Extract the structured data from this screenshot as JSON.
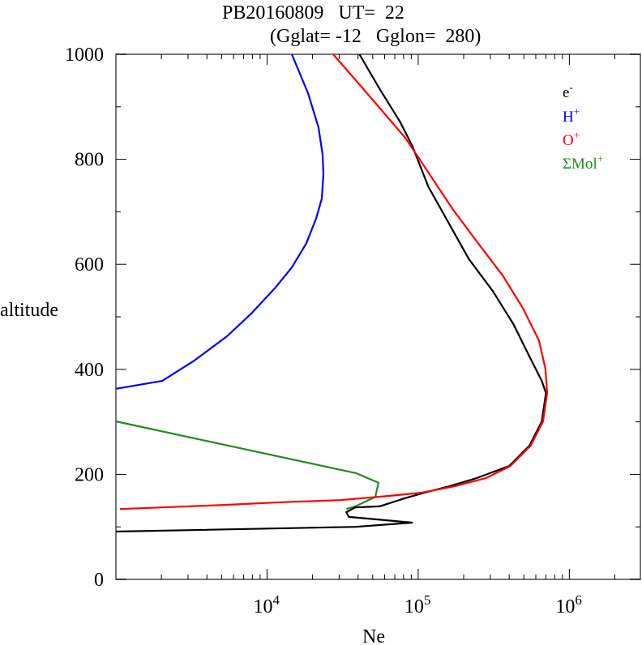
{
  "chart_data": {
    "type": "line",
    "title": "PB20160809   UT=  22",
    "subtitle": "(Gglat= -12   Gglon=  280)",
    "xlabel": "Ne",
    "ylabel": "altitude",
    "xscale": "log",
    "xlim_log10": [
      3.0,
      6.47
    ],
    "ylim": [
      0,
      1000
    ],
    "x_major_ticks_log10": [
      4,
      5,
      6
    ],
    "x_tick_labels": [
      {
        "base": "10",
        "exp": "4"
      },
      {
        "base": "10",
        "exp": "5"
      },
      {
        "base": "10",
        "exp": "6"
      }
    ],
    "y_ticks": [
      0,
      200,
      400,
      600,
      800,
      1000
    ],
    "y_tick_labels": [
      "0",
      "200",
      "400",
      "600",
      "800",
      "1000"
    ],
    "y_minor_ticks": [
      100,
      300,
      500,
      700,
      900
    ],
    "grid": false,
    "legend_position": "top-right",
    "series": [
      {
        "name": "e-",
        "label_base": "e",
        "label_sup": "-",
        "color": "#000000",
        "points_log10_alt": [
          [
            4.611,
            1000
          ],
          [
            4.745,
            934
          ],
          [
            4.879,
            872
          ],
          [
            4.96,
            826
          ],
          [
            5.067,
            748
          ],
          [
            5.201,
            679
          ],
          [
            5.335,
            610
          ],
          [
            5.496,
            548
          ],
          [
            5.63,
            486
          ],
          [
            5.737,
            424
          ],
          [
            5.818,
            378
          ],
          [
            5.845,
            355
          ],
          [
            5.818,
            301
          ],
          [
            5.737,
            255
          ],
          [
            5.603,
            216
          ],
          [
            5.389,
            193
          ],
          [
            5.201,
            177
          ],
          [
            5.04,
            165
          ],
          [
            4.906,
            154
          ],
          [
            4.745,
            139
          ],
          [
            4.584,
            137
          ],
          [
            4.525,
            128
          ],
          [
            4.541,
            119
          ],
          [
            4.96,
            108
          ],
          [
            4.584,
            100
          ],
          [
            3.0,
            91
          ]
        ]
      },
      {
        "name": "H+",
        "label_base": "H",
        "label_sup": "+",
        "color": "#0000ff",
        "points_log10_alt": [
          [
            4.164,
            1000
          ],
          [
            4.271,
            926
          ],
          [
            4.34,
            861
          ],
          [
            4.367,
            810
          ],
          [
            4.373,
            772
          ],
          [
            4.362,
            725
          ],
          [
            4.324,
            687
          ],
          [
            4.26,
            640
          ],
          [
            4.164,
            594
          ],
          [
            4.056,
            556
          ],
          [
            3.895,
            506
          ],
          [
            3.735,
            463
          ],
          [
            3.52,
            417
          ],
          [
            3.306,
            378
          ],
          [
            3.0,
            363
          ]
        ]
      },
      {
        "name": "O+",
        "label_base": "O",
        "label_sup": "+",
        "color": "#ff0000",
        "points_log10_alt": [
          [
            4.437,
            1000
          ],
          [
            4.592,
            949
          ],
          [
            4.753,
            895
          ],
          [
            4.914,
            841
          ],
          [
            5.021,
            795
          ],
          [
            5.129,
            748
          ],
          [
            5.236,
            702
          ],
          [
            5.397,
            640
          ],
          [
            5.558,
            579
          ],
          [
            5.692,
            517
          ],
          [
            5.799,
            455
          ],
          [
            5.842,
            401
          ],
          [
            5.853,
            355
          ],
          [
            5.826,
            301
          ],
          [
            5.745,
            255
          ],
          [
            5.611,
            216
          ],
          [
            5.45,
            193
          ],
          [
            5.236,
            177
          ],
          [
            5.021,
            165
          ],
          [
            4.807,
            159
          ],
          [
            4.485,
            151
          ],
          [
            4.11,
            147
          ],
          [
            3.735,
            142
          ],
          [
            3.306,
            137
          ],
          [
            3.027,
            134
          ]
        ]
      },
      {
        "name": "ΣMol+",
        "label_base": "ΣMol",
        "label_sup": "+",
        "color": "#228b22",
        "points_log10_alt": [
          [
            3.0,
            301
          ],
          [
            4.592,
            202
          ],
          [
            4.737,
            184
          ],
          [
            4.716,
            157
          ],
          [
            4.592,
            140
          ],
          [
            4.525,
            134
          ]
        ]
      }
    ]
  }
}
